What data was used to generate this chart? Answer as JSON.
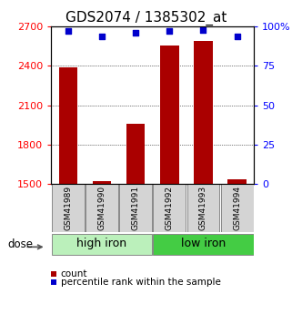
{
  "title": "GDS2074 / 1385302_at",
  "categories": [
    "GSM41989",
    "GSM41990",
    "GSM41991",
    "GSM41992",
    "GSM41993",
    "GSM41994"
  ],
  "bar_values": [
    2390,
    1520,
    1960,
    2555,
    2590,
    1535
  ],
  "percentile_values": [
    97,
    94,
    96,
    97,
    98,
    94
  ],
  "bar_color": "#aa0000",
  "dot_color": "#0000cc",
  "ylim_left": [
    1500,
    2700
  ],
  "ylim_right": [
    0,
    100
  ],
  "yticks_left": [
    1500,
    1800,
    2100,
    2400,
    2700
  ],
  "yticks_right": [
    0,
    25,
    50,
    75,
    100
  ],
  "ytick_labels_right": [
    "0",
    "25",
    "50",
    "75",
    "100%"
  ],
  "high_iron_color": "#bbf0bb",
  "low_iron_color": "#44cc44",
  "group_bg_colors": [
    "#bbf0bb",
    "#44cc44"
  ],
  "group_labels": [
    "high iron",
    "low iron"
  ],
  "xlabel_text": "dose",
  "legend_count_label": "count",
  "legend_pct_label": "percentile rank within the sample",
  "bar_width": 0.55,
  "title_fontsize": 11,
  "axis_tick_fontsize": 8,
  "label_fontsize": 9,
  "sample_label_fontsize": 6.5,
  "background_color": "#ffffff"
}
